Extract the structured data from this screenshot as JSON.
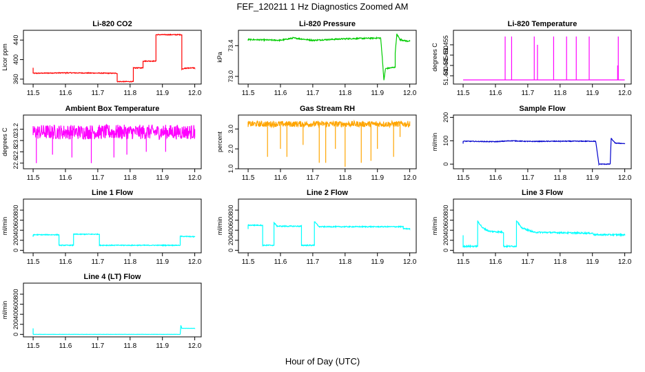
{
  "page": {
    "title": "FEF_120211  1 Hz Diagnostics Zoomed AM",
    "xlabel": "Hour of Day (UTC)"
  },
  "colors": {
    "red": "#ff0000",
    "green": "#00cc00",
    "magenta": "#ff00ff",
    "orange": "#ffa500",
    "blue": "#0000cc",
    "cyan": "#00ffff"
  },
  "chart_data": [
    {
      "id": "co2",
      "type": "line",
      "title": "Li-820 CO2",
      "ylabel": "Licor ppm",
      "color": "#ff0000",
      "xlim": [
        11.47,
        12.02
      ],
      "ylim": [
        350,
        460
      ],
      "xticks": [
        "11.5",
        "11.6",
        "11.7",
        "11.8",
        "11.9",
        "12.0"
      ],
      "yticks": [
        "360",
        "400",
        "440"
      ],
      "steps": [
        [
          11.5,
          372
        ],
        [
          11.6,
          373
        ],
        [
          11.76,
          372
        ],
        [
          11.76,
          355
        ],
        [
          11.81,
          355
        ],
        [
          11.81,
          383
        ],
        [
          11.84,
          383
        ],
        [
          11.84,
          397
        ],
        [
          11.88,
          397
        ],
        [
          11.88,
          451
        ],
        [
          11.96,
          451
        ],
        [
          11.96,
          381
        ],
        [
          11.98,
          383
        ],
        [
          12.0,
          383
        ]
      ],
      "noise": 0.8,
      "spikes": []
    },
    {
      "id": "pressure",
      "type": "line",
      "title": "Li-820 Pressure",
      "ylabel": "kPa",
      "color": "#00cc00",
      "xlim": [
        11.47,
        12.02
      ],
      "ylim": [
        72.9,
        73.6
      ],
      "xticks": [
        "11.5",
        "11.6",
        "11.7",
        "11.8",
        "11.9",
        "12.0"
      ],
      "yticks": [
        "73.0",
        "73.4"
      ],
      "steps": [
        [
          11.5,
          73.48
        ],
        [
          11.6,
          73.47
        ],
        [
          11.64,
          73.5
        ],
        [
          11.7,
          73.47
        ],
        [
          11.8,
          73.49
        ],
        [
          11.91,
          73.5
        ],
        [
          11.915,
          73.25
        ],
        [
          11.92,
          72.95
        ],
        [
          11.925,
          73.1
        ],
        [
          11.955,
          73.12
        ],
        [
          11.955,
          73.3
        ],
        [
          11.96,
          73.55
        ],
        [
          11.97,
          73.48
        ],
        [
          11.99,
          73.46
        ],
        [
          12.0,
          73.46
        ]
      ],
      "noise": 0.008,
      "spikes": []
    },
    {
      "id": "temperature",
      "type": "line",
      "title": "Li-820 Temperature",
      "ylabel": "degrees C",
      "color": "#ff00ff",
      "xlim": [
        11.47,
        12.02
      ],
      "ylim": [
        51.436,
        51.462
      ],
      "xticks": [
        "11.5",
        "11.6",
        "11.7",
        "11.8",
        "11.9",
        "12.0"
      ],
      "yticks": [
        "51.440",
        "51.445",
        "51.450",
        "51.455"
      ],
      "steps": [
        [
          11.5,
          51.438
        ],
        [
          12.0,
          51.438
        ]
      ],
      "noise": 0,
      "spikes": [
        [
          11.63,
          51.459
        ],
        [
          11.65,
          51.459
        ],
        [
          11.72,
          51.459
        ],
        [
          11.73,
          51.455
        ],
        [
          11.78,
          51.459
        ],
        [
          11.82,
          51.459
        ],
        [
          11.85,
          51.459
        ],
        [
          11.89,
          51.459
        ],
        [
          11.98,
          51.459
        ],
        [
          11.978,
          51.445
        ]
      ]
    },
    {
      "id": "ambient",
      "type": "line",
      "title": "Ambient Box Temperature",
      "ylabel": "degrees C",
      "color": "#ff00ff",
      "xlim": [
        11.47,
        12.02
      ],
      "ylim": [
        22.5,
        23.45
      ],
      "xticks": [
        "11.5",
        "11.6",
        "11.7",
        "11.8",
        "11.9",
        "12.0"
      ],
      "yticks": [
        "22.6",
        "22.8",
        "23.0",
        "23.2"
      ],
      "steps": [
        [
          11.5,
          23.15
        ],
        [
          12.0,
          23.15
        ]
      ],
      "noise": 0.13,
      "spikes": [
        [
          11.51,
          22.6
        ],
        [
          11.56,
          22.75
        ],
        [
          11.62,
          22.7
        ],
        [
          11.68,
          22.6
        ],
        [
          11.75,
          22.7
        ],
        [
          11.79,
          22.75
        ],
        [
          11.85,
          22.8
        ],
        [
          11.91,
          22.8
        ]
      ]
    },
    {
      "id": "rh",
      "type": "line",
      "title": "Gas Stream RH",
      "ylabel": "percent",
      "color": "#ffa500",
      "xlim": [
        11.47,
        12.02
      ],
      "ylim": [
        1.0,
        3.7
      ],
      "xticks": [
        "11.5",
        "11.6",
        "11.7",
        "11.8",
        "11.9",
        "12.0"
      ],
      "yticks": [
        "1.0",
        "2.0",
        "3.0"
      ],
      "steps": [
        [
          11.5,
          3.25
        ],
        [
          12.0,
          3.25
        ]
      ],
      "noise": 0.15,
      "spikes": [
        [
          11.56,
          1.6
        ],
        [
          11.6,
          2.0
        ],
        [
          11.62,
          1.6
        ],
        [
          11.67,
          2.2
        ],
        [
          11.72,
          1.3
        ],
        [
          11.74,
          1.3
        ],
        [
          11.77,
          2.0
        ],
        [
          11.8,
          1.1
        ],
        [
          11.85,
          1.3
        ],
        [
          11.88,
          1.4
        ],
        [
          11.9,
          2.0
        ],
        [
          11.95,
          1.6
        ],
        [
          11.97,
          2.6
        ]
      ]
    },
    {
      "id": "sample",
      "type": "line",
      "title": "Sample Flow",
      "ylabel": "ml/min",
      "color": "#0000cc",
      "xlim": [
        11.47,
        12.02
      ],
      "ylim": [
        -20,
        210
      ],
      "xticks": [
        "11.5",
        "11.6",
        "11.7",
        "11.8",
        "11.9",
        "12.0"
      ],
      "yticks": [
        "0",
        "100",
        "200"
      ],
      "steps": [
        [
          11.5,
          98
        ],
        [
          11.6,
          96
        ],
        [
          11.65,
          100
        ],
        [
          11.7,
          97
        ],
        [
          11.8,
          98
        ],
        [
          11.91,
          98
        ],
        [
          11.92,
          0
        ],
        [
          11.955,
          0
        ],
        [
          11.958,
          110
        ],
        [
          11.97,
          90
        ],
        [
          12.0,
          88
        ]
      ],
      "noise": 1.5,
      "spikes": []
    },
    {
      "id": "line1",
      "type": "line",
      "title": "Line 1 Flow",
      "ylabel": "ml/min",
      "color": "#00ffff",
      "xlim": [
        11.47,
        12.02
      ],
      "ylim": [
        -50,
        1020
      ],
      "xticks": [
        "11.5",
        "11.6",
        "11.7",
        "11.8",
        "11.9",
        "12.0"
      ],
      "yticks": [
        "0",
        "200",
        "400",
        "600",
        "800"
      ],
      "steps": [
        [
          11.5,
          310
        ],
        [
          11.58,
          310
        ],
        [
          11.58,
          100
        ],
        [
          11.625,
          100
        ],
        [
          11.625,
          320
        ],
        [
          11.705,
          320
        ],
        [
          11.705,
          100
        ],
        [
          11.955,
          100
        ],
        [
          11.955,
          280
        ],
        [
          12.0,
          270
        ]
      ],
      "noise": 8,
      "spikes": []
    },
    {
      "id": "line2",
      "type": "line",
      "title": "Line 2 Flow",
      "ylabel": "ml/min",
      "color": "#00ffff",
      "xlim": [
        11.47,
        12.02
      ],
      "ylim": [
        -50,
        1020
      ],
      "xticks": [
        "11.5",
        "11.6",
        "11.7",
        "11.8",
        "11.9",
        "12.0"
      ],
      "yticks": [
        "0",
        "200",
        "400",
        "600",
        "800"
      ],
      "steps": [
        [
          11.5,
          500
        ],
        [
          11.545,
          500
        ],
        [
          11.545,
          100
        ],
        [
          11.58,
          100
        ],
        [
          11.58,
          550
        ],
        [
          11.59,
          480
        ],
        [
          11.665,
          480
        ],
        [
          11.665,
          100
        ],
        [
          11.705,
          100
        ],
        [
          11.705,
          570
        ],
        [
          11.72,
          470
        ],
        [
          11.98,
          470
        ],
        [
          11.98,
          430
        ],
        [
          12.0,
          430
        ]
      ],
      "noise": 10,
      "spikes": []
    },
    {
      "id": "line3",
      "type": "line",
      "title": "Line 3 Flow",
      "ylabel": "ml/min",
      "color": "#00ffff",
      "xlim": [
        11.47,
        12.02
      ],
      "ylim": [
        -50,
        1020
      ],
      "xticks": [
        "11.5",
        "11.6",
        "11.7",
        "11.8",
        "11.9",
        "12.0"
      ],
      "yticks": [
        "0",
        "200",
        "400",
        "600",
        "800"
      ],
      "steps": [
        [
          11.5,
          80
        ],
        [
          11.545,
          80
        ],
        [
          11.545,
          580
        ],
        [
          11.56,
          450
        ],
        [
          11.58,
          380
        ],
        [
          11.625,
          360
        ],
        [
          11.625,
          80
        ],
        [
          11.665,
          80
        ],
        [
          11.665,
          600
        ],
        [
          11.68,
          450
        ],
        [
          11.72,
          360
        ],
        [
          11.9,
          340
        ],
        [
          11.905,
          310
        ],
        [
          12.0,
          310
        ]
      ],
      "noise": 14,
      "spikes": []
    },
    {
      "id": "line4",
      "type": "line",
      "title": "Line 4 (LT) Flow",
      "ylabel": "ml/min",
      "color": "#00ffff",
      "xlim": [
        11.47,
        12.02
      ],
      "ylim": [
        -50,
        1020
      ],
      "xticks": [
        "11.5",
        "11.6",
        "11.7",
        "11.8",
        "11.9",
        "12.0"
      ],
      "yticks": [
        "0",
        "200",
        "400",
        "600",
        "800"
      ],
      "steps": [
        [
          11.5,
          0
        ],
        [
          11.955,
          0
        ],
        [
          11.957,
          180
        ],
        [
          11.96,
          120
        ],
        [
          12.0,
          120
        ]
      ],
      "noise": 2,
      "spikes": []
    }
  ]
}
